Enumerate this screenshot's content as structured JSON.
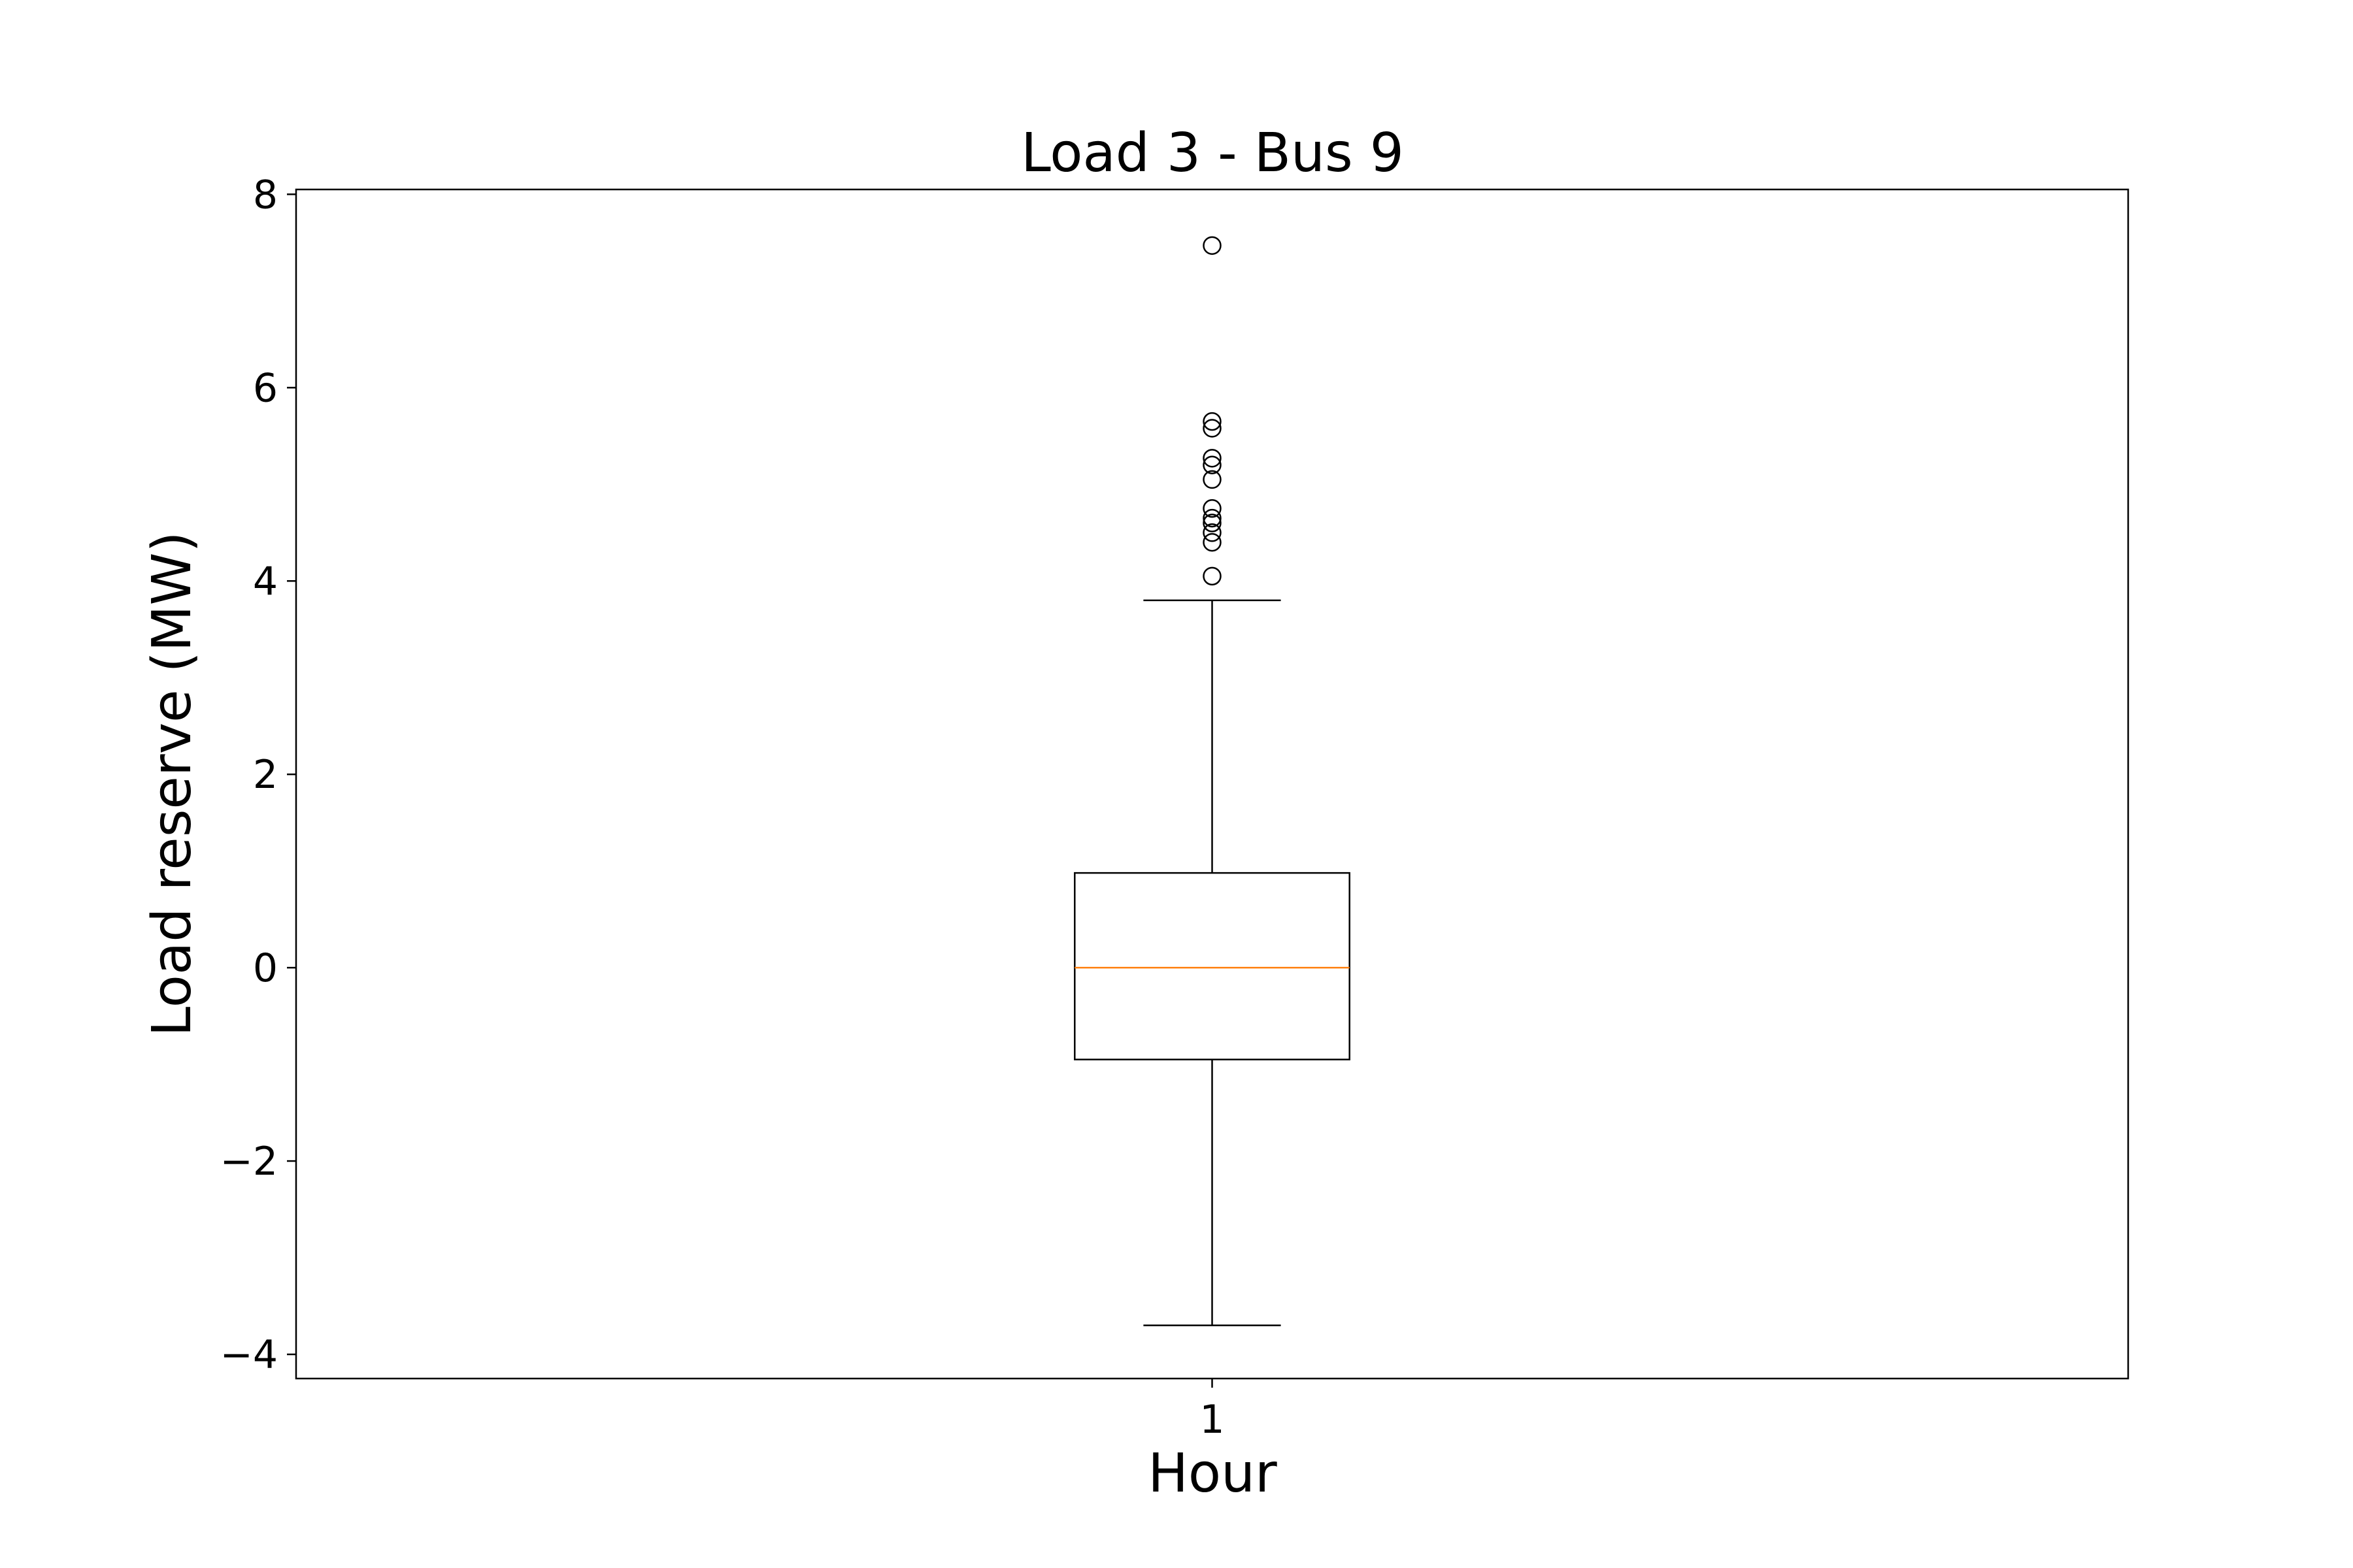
{
  "chart_data": {
    "type": "boxplot",
    "title": "Load 3 - Bus 9",
    "xlabel": "Hour",
    "ylabel": "Load reserve (MW)",
    "categories": [
      "1"
    ],
    "ylim": [
      -4.25,
      8.05
    ],
    "yticks": [
      {
        "value": -4,
        "label": "−4"
      },
      {
        "value": -2,
        "label": "−2"
      },
      {
        "value": 0,
        "label": "0"
      },
      {
        "value": 2,
        "label": "2"
      },
      {
        "value": 4,
        "label": "4"
      },
      {
        "value": 6,
        "label": "6"
      },
      {
        "value": 8,
        "label": "8"
      }
    ],
    "boxes": [
      {
        "category": "1",
        "whisker_low": -3.7,
        "q1": -0.95,
        "median": 0.0,
        "q3": 0.98,
        "whisker_high": 3.8,
        "outliers": [
          4.05,
          4.4,
          4.5,
          4.6,
          4.65,
          4.75,
          5.05,
          5.2,
          5.27,
          5.58,
          5.65,
          7.47
        ]
      }
    ],
    "grid": false,
    "legend": "none",
    "colors": {
      "box": "#000000",
      "median": "#ff7f0e",
      "outlier": "#000000"
    }
  }
}
